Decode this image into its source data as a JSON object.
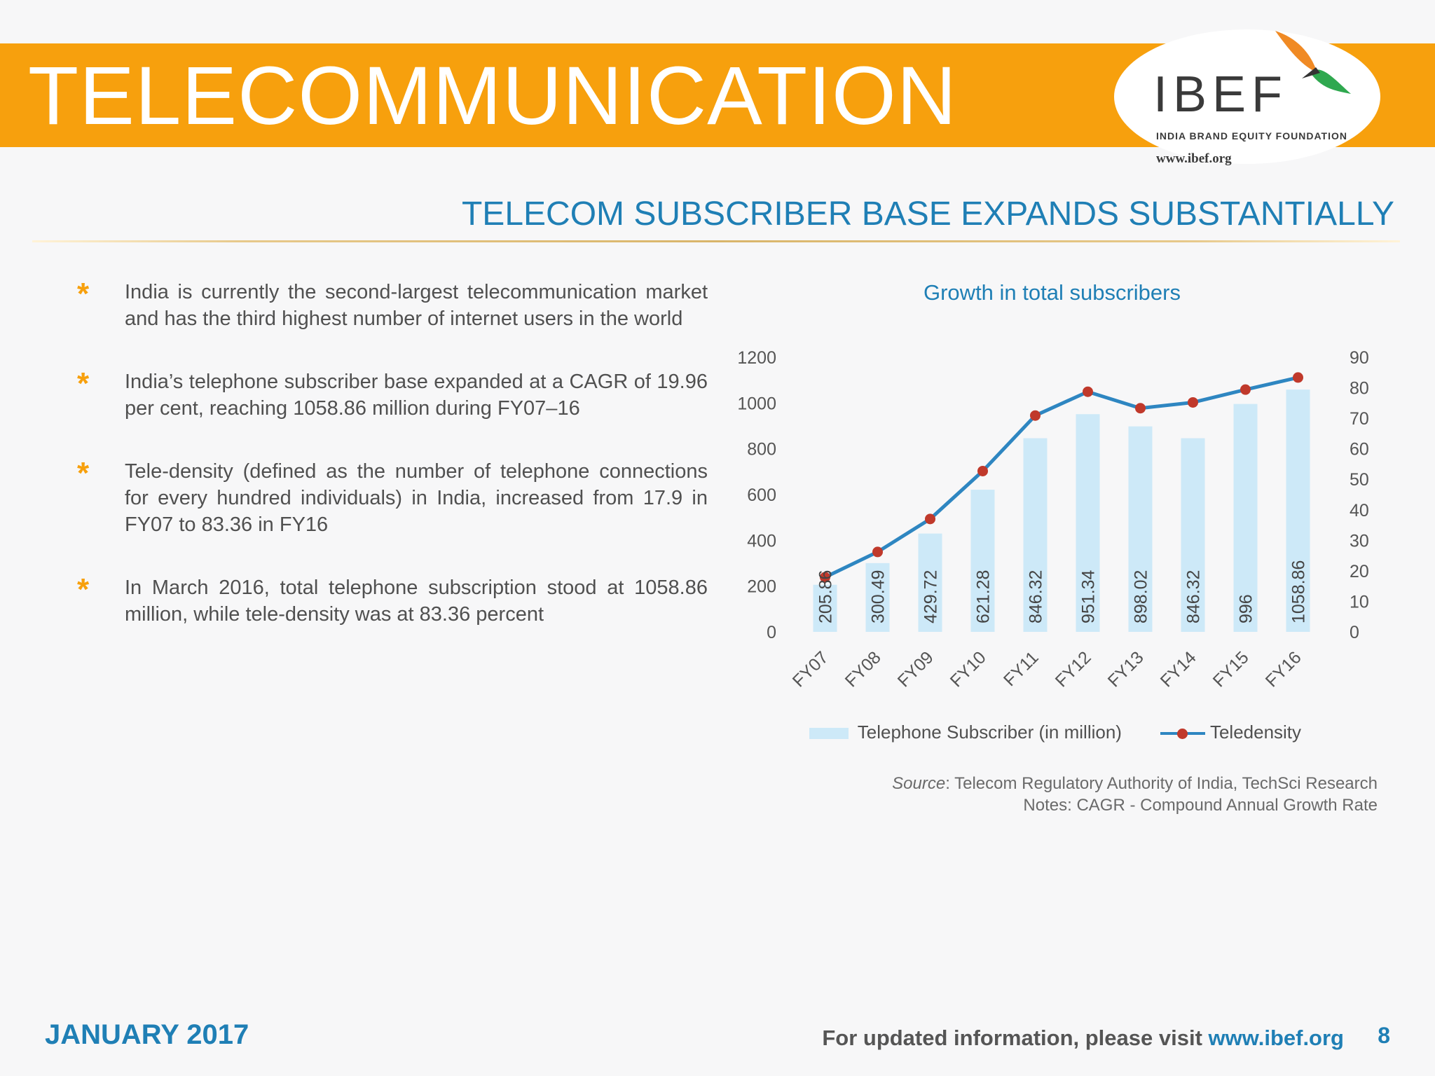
{
  "header": {
    "title": "TELECOMMUNICATION",
    "logo_text": "IBEF",
    "logo_subtitle": "INDIA BRAND EQUITY FOUNDATION",
    "logo_url": "www.ibef.org"
  },
  "subtitle": "TELECOM SUBSCRIBER BASE EXPANDS SUBSTANTIALLY",
  "bullets": [
    "India is currently the second-largest telecommunication market and has the third highest number of internet users in the world",
    "India’s telephone subscriber base expanded at a CAGR of 19.96 per cent, reaching 1058.86 million during FY07–16",
    "Tele-density (defined as the number of telephone connections for every hundred individuals) in India, increased from 17.9 in FY07 to 83.36 in FY16",
    "In March 2016, total telephone subscription stood at 1058.86 million, while tele-density was at 83.36 percent"
  ],
  "chart_data": {
    "type": "bar",
    "title": "Growth in total subscribers",
    "categories": [
      "FY07",
      "FY08",
      "FY09",
      "FY10",
      "FY11",
      "FY12",
      "FY13",
      "FY14",
      "FY15",
      "FY16"
    ],
    "series": [
      {
        "name": "Telephone Subscriber (in million)",
        "type": "bar",
        "axis": "left",
        "values": [
          205.86,
          300.49,
          429.72,
          621.28,
          846.32,
          951.34,
          898.02,
          846.32,
          996,
          1058.86
        ],
        "data_labels": [
          "205.86",
          "300.49",
          "429.72",
          "621.28",
          "846.32",
          "951.34",
          "898.02",
          "846.32",
          "996",
          "1058.86"
        ],
        "color": "#cde9f8"
      },
      {
        "name": "Teledensity",
        "type": "line",
        "axis": "right",
        "values": [
          17.9,
          26.2,
          37.0,
          52.7,
          70.9,
          78.7,
          73.3,
          75.2,
          79.4,
          83.36
        ],
        "color": "#2e86c1",
        "marker_color": "#c0392b"
      }
    ],
    "left_axis": {
      "ylim": [
        0,
        1200
      ],
      "ticks": [
        "0",
        "200",
        "400",
        "600",
        "800",
        "1000",
        "1200"
      ]
    },
    "right_axis": {
      "ylim": [
        0,
        90
      ],
      "ticks": [
        "0",
        "10",
        "20",
        "30",
        "40",
        "50",
        "60",
        "70",
        "80",
        "90"
      ]
    },
    "legend_position": "bottom",
    "grid": false
  },
  "source": {
    "label": "Source",
    "text": ": Telecom Regulatory Authority of India, TechSci Research",
    "notes": "Notes: CAGR - Compound Annual Growth Rate"
  },
  "footer": {
    "date": "JANUARY 2017",
    "visit_text": "For updated information, please visit ",
    "visit_link": "www.ibef.org",
    "page": "8"
  },
  "colors": {
    "accent_orange": "#f7a00d",
    "accent_blue": "#1f7fb5"
  }
}
